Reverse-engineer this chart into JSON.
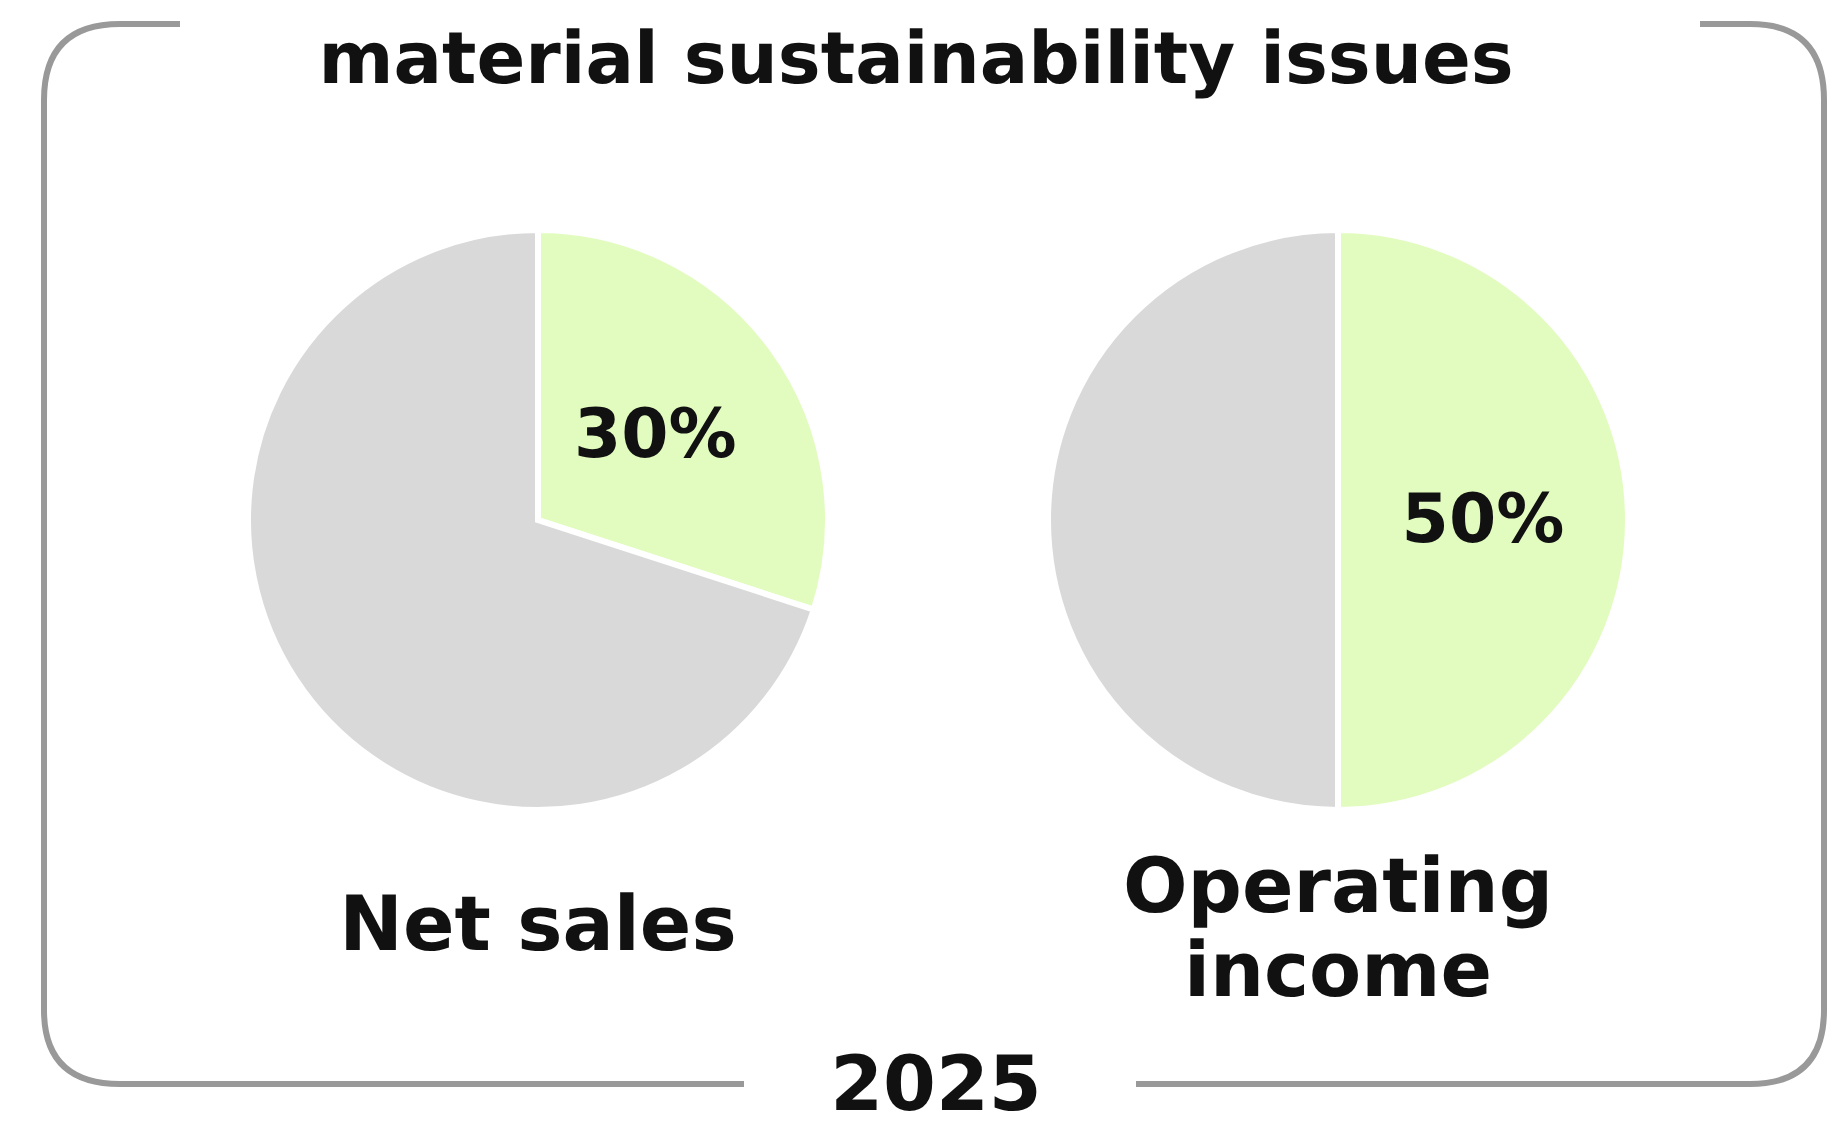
{
  "chart_data": [
    {
      "type": "pie",
      "title": "material sustainability issues",
      "xlabel": "Net sales",
      "categories": [
        null,
        null
      ],
      "values": [
        30,
        70
      ],
      "colors": [
        "#e2fcc0",
        "#d9d9d9"
      ],
      "value_labels": [
        "30%",
        null
      ],
      "annotations": [
        "2025"
      ]
    },
    {
      "type": "pie",
      "xlabel": "Operating income",
      "categories": [
        null,
        null
      ],
      "values": [
        50,
        50
      ],
      "colors": [
        "#e2fcc0",
        "#d9d9d9"
      ],
      "value_labels": [
        "50%",
        null
      ]
    }
  ]
}
